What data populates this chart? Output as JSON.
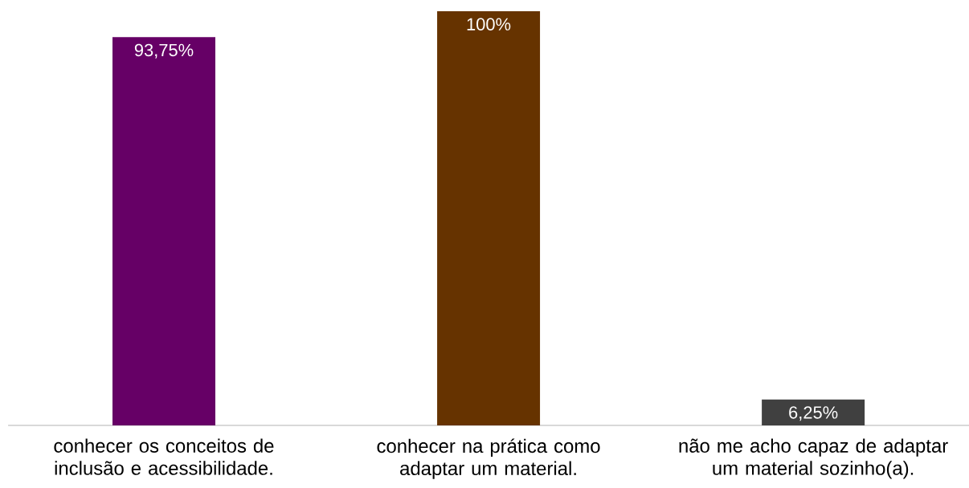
{
  "chart_data": {
    "type": "bar",
    "categories": [
      "conhecer os conceitos de inclusão e acessibilidade.",
      "conhecer na prática como adaptar um material.",
      "não me acho capaz de adaptar um material sozinho(a)."
    ],
    "values": [
      93.75,
      100,
      6.25
    ],
    "value_labels": [
      "93,75%",
      "100%",
      "6,25%"
    ],
    "colors": [
      "#660066",
      "#663300",
      "#404040"
    ]
  }
}
